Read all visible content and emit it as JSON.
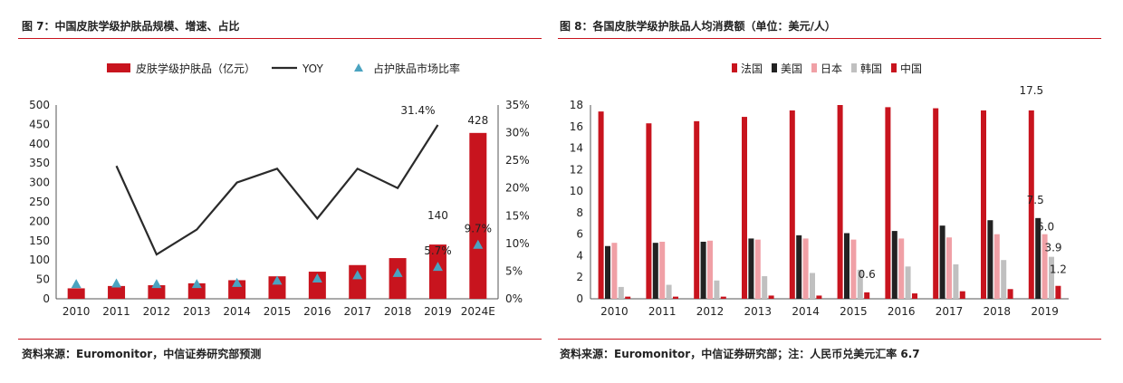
{
  "left": {
    "title": "图 7：中国皮肤学级护肤品规模、增速、占比",
    "source": "资料来源：Euromonitor，中信证券研究部预测"
  },
  "right": {
    "title": "图 8：各国皮肤学级护肤品人均消费额（单位：美元/人）",
    "source": "资料来源：Euromonitor，中信证券研究部；注：人民币兑美元汇率 6.7"
  },
  "colors": {
    "red": "#c8141e",
    "black": "#222222",
    "pink": "#f0a0a6",
    "gray": "#c0c0c0",
    "line": "#2a2a2a",
    "marker": "#4aa3c0"
  },
  "chart_data": [
    {
      "type": "bar",
      "title": "",
      "categories": [
        "2010",
        "2011",
        "2012",
        "2013",
        "2014",
        "2015",
        "2016",
        "2017",
        "2018",
        "2019",
        "2024E"
      ],
      "series": [
        {
          "name": "皮肤学级护肤品（亿元）",
          "type": "bar",
          "axis": "left",
          "values": [
            27,
            33,
            35,
            40,
            48,
            58,
            70,
            87,
            105,
            140,
            428
          ]
        },
        {
          "name": "YOY",
          "type": "line",
          "axis": "right",
          "values": [
            null,
            24.0,
            8.0,
            12.5,
            21.0,
            23.5,
            14.5,
            23.5,
            20.0,
            31.4,
            null
          ]
        },
        {
          "name": "占护肤品市场比率",
          "type": "scatter",
          "axis": "right",
          "values": [
            2.6,
            2.7,
            2.6,
            2.6,
            2.8,
            3.2,
            3.6,
            4.2,
            4.6,
            5.7,
            9.7
          ]
        }
      ],
      "ylim_left": [
        0,
        500
      ],
      "yticks_left": [
        "0",
        "50",
        "100",
        "150",
        "200",
        "250",
        "300",
        "350",
        "400",
        "450",
        "500"
      ],
      "ylim_right": [
        0,
        35
      ],
      "yticks_right": [
        "0%",
        "5%",
        "10%",
        "15%",
        "20%",
        "25%",
        "30%",
        "35%"
      ],
      "data_labels": {
        "bar_2019": "140",
        "bar_2024E": "428",
        "yoy_2019": "31.4%",
        "share_2019": "5.7%",
        "share_2024E": "9.7%"
      },
      "legend_position": "top"
    },
    {
      "type": "bar",
      "title": "",
      "categories": [
        "2010",
        "2011",
        "2012",
        "2013",
        "2014",
        "2015",
        "2016",
        "2017",
        "2018",
        "2019"
      ],
      "series": [
        {
          "name": "法国",
          "values": [
            17.4,
            16.3,
            16.5,
            16.9,
            17.5,
            18.0,
            17.8,
            17.7,
            17.5,
            17.5
          ]
        },
        {
          "name": "美国",
          "values": [
            4.9,
            5.2,
            5.3,
            5.6,
            5.9,
            6.1,
            6.3,
            6.8,
            7.3,
            7.5
          ]
        },
        {
          "name": "日本",
          "values": [
            5.2,
            5.3,
            5.4,
            5.5,
            5.6,
            5.5,
            5.6,
            5.7,
            6.0,
            6.0
          ]
        },
        {
          "name": "韩国",
          "values": [
            1.1,
            1.3,
            1.7,
            2.1,
            2.4,
            2.7,
            3.0,
            3.2,
            3.6,
            3.9
          ]
        },
        {
          "name": "中国",
          "values": [
            0.2,
            0.2,
            0.2,
            0.3,
            0.3,
            0.6,
            0.5,
            0.7,
            0.9,
            1.2
          ]
        }
      ],
      "ylim": [
        0,
        18
      ],
      "yticks": [
        "0",
        "2",
        "4",
        "6",
        "8",
        "10",
        "12",
        "14",
        "16",
        "18"
      ],
      "data_labels": {
        "france_2019": "17.5",
        "usa_2019": "7.5",
        "japan_2019": "6.0",
        "korea_2019": "3.9",
        "china_2019": "1.2",
        "china_2015": "0.6"
      },
      "legend_position": "top"
    }
  ]
}
